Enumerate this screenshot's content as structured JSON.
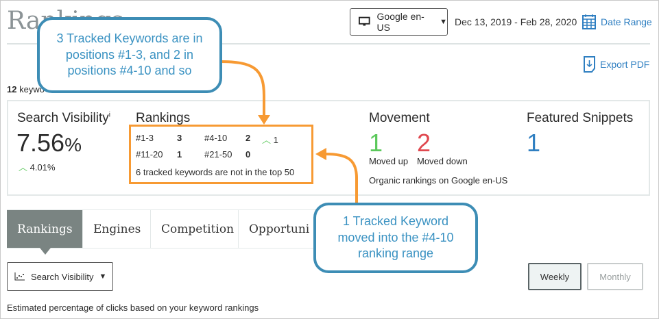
{
  "header": {
    "title": "Rankings",
    "engine": "Google en-US",
    "date_range": "Dec 13, 2019 - Feb 28, 2020",
    "date_range_link": "Date Range",
    "export": "Export PDF",
    "keyword_count": "12",
    "keyword_text": "keywo"
  },
  "summary": {
    "search_visibility": {
      "label": "Search Visibility",
      "info": "i",
      "value": "7.56",
      "unit": "%",
      "change": "4.01%"
    },
    "rankings": {
      "label": "Rankings",
      "rows": [
        {
          "range": "#1-3",
          "count": "3"
        },
        {
          "range": "#4-10",
          "count": "2",
          "change": "1"
        },
        {
          "range": "#11-20",
          "count": "1"
        },
        {
          "range": "#21-50",
          "count": "0"
        }
      ],
      "note": "6 tracked keywords are not in the top 50"
    },
    "movement": {
      "label": "Movement",
      "up": "1",
      "up_label": "Moved up",
      "down": "2",
      "down_label": "Moved down",
      "note": "Organic rankings on Google en-US"
    },
    "featured": {
      "label": "Featured Snippets",
      "value": "1"
    }
  },
  "tabs": [
    {
      "label": "Rankings",
      "active": true
    },
    {
      "label": "Engines"
    },
    {
      "label": "Competition"
    },
    {
      "label": "Opportuni"
    }
  ],
  "controls": {
    "metric": "Search Visibility",
    "weekly": "Weekly",
    "monthly": "Monthly",
    "selected": "Weekly"
  },
  "footer": "Estimated percentage of clicks based on your keyword rankings",
  "callouts": [
    "3 Tracked Keywords are in positions #1-3, and 2 in positions #4-10 and so",
    "1 Tracked Keyword moved into the #4-10 ranking range"
  ],
  "colors": {
    "accent": "#2f7fc1",
    "up": "#5ac85a",
    "down": "#e0484f",
    "annotation": "#f79a33",
    "callout": "#3d8db5"
  }
}
